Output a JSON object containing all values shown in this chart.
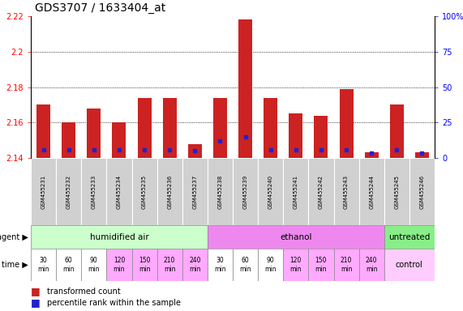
{
  "title": "GDS3707 / 1633404_at",
  "samples": [
    "GSM455231",
    "GSM455232",
    "GSM455233",
    "GSM455234",
    "GSM455235",
    "GSM455236",
    "GSM455237",
    "GSM455238",
    "GSM455239",
    "GSM455240",
    "GSM455241",
    "GSM455242",
    "GSM455243",
    "GSM455244",
    "GSM455245",
    "GSM455246"
  ],
  "red_values": [
    2.17,
    2.16,
    2.168,
    2.16,
    2.174,
    2.174,
    2.148,
    2.174,
    2.218,
    2.174,
    2.165,
    2.164,
    2.179,
    2.143,
    2.17,
    2.143
  ],
  "blue_pct": [
    5.5,
    6.0,
    5.5,
    6.0,
    5.5,
    5.5,
    5.0,
    12.0,
    15.0,
    6.0,
    5.5,
    5.5,
    5.5,
    3.5,
    5.5,
    3.5
  ],
  "ymin": 2.14,
  "ymax": 2.22,
  "yticks": [
    2.14,
    2.16,
    2.18,
    2.2,
    2.22
  ],
  "ytick_labels": [
    "2.14",
    "2.16",
    "2.18",
    "2.2",
    "2.22"
  ],
  "y2ticks": [
    0,
    25,
    50,
    75,
    100
  ],
  "y2tick_labels": [
    "0",
    "25",
    "50",
    "75",
    "100%"
  ],
  "agent_groups": [
    {
      "label": "humidified air",
      "start": 0,
      "end": 7,
      "color": "#ccffcc"
    },
    {
      "label": "ethanol",
      "start": 7,
      "end": 14,
      "color": "#ee88ee"
    },
    {
      "label": "untreated",
      "start": 14,
      "end": 16,
      "color": "#88ee88"
    }
  ],
  "time_labels": [
    "30\nmin",
    "60\nmin",
    "90\nmin",
    "120\nmin",
    "150\nmin",
    "210\nmin",
    "240\nmin",
    "30\nmin",
    "60\nmin",
    "90\nmin",
    "120\nmin",
    "150\nmin",
    "210\nmin",
    "240\nmin"
  ],
  "time_colors": [
    "#ffffff",
    "#ffffff",
    "#ffffff",
    "#ffaaff",
    "#ffaaff",
    "#ffaaff",
    "#ffaaff",
    "#ffffff",
    "#ffffff",
    "#ffffff",
    "#ffaaff",
    "#ffaaff",
    "#ffaaff",
    "#ffaaff"
  ],
  "control_color": "#ffccff",
  "bar_color": "#cc2222",
  "blue_color": "#2222cc",
  "bar_bottom": 2.14,
  "bar_width": 0.55,
  "legend_red": "transformed count",
  "legend_blue": "percentile rank within the sample"
}
